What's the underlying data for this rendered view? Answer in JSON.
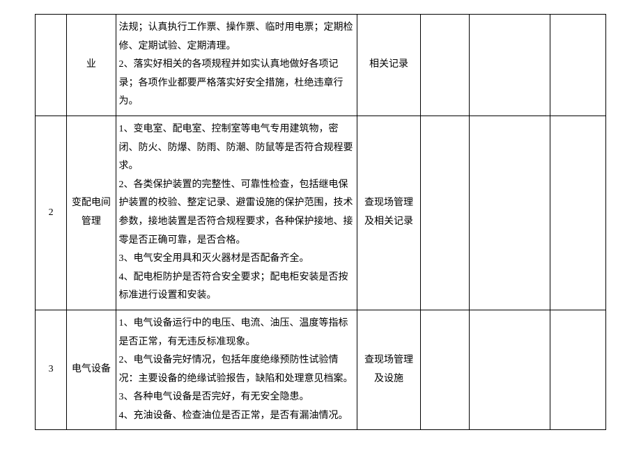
{
  "rows": [
    {
      "index": "",
      "item": "业",
      "desc": "法规；认真执行工作票、操作票、临时用电票；定期检修、定期试验、定期清理。\n2、落实好相关的各项规程并如实认真地做好各项记录；各项作业都要严格落实好安全措施，杜绝违章行为。",
      "check": "相关记录",
      "b1": "",
      "b2": "",
      "b3": ""
    },
    {
      "index": "2",
      "item": "变配电间管理",
      "desc": "1、变电室、配电室、控制室等电气专用建筑物，密闭、防火、防爆、防雨、防潮、防鼠等是否符合规程要求。\n2、各类保护装置的完整性、可靠性检查，包括继电保护装置的校验、整定记录、避雷设施的保护范围，技术参数，接地装置是否符合规程要求，各种保护接地、接零是否正确可靠，是否合格。\n3、电气安全用具和灭火器材是否配备齐全。\n4、配电柜防护是否符合安全要求；配电柜安装是否按标准进行设置和安装。",
      "check": "查现场管理及相关记录",
      "b1": "",
      "b2": "",
      "b3": ""
    },
    {
      "index": "3",
      "item": "电气设备",
      "desc": "1、电气设备运行中的电压、电流、油压、温度等指标是否正常，有无违反标准现象。\n2、电气设备完好情况，包括年度绝缘预防性试验情况：主要设备的绝缘试验报告，缺陷和处理意见档案。\n3、各种电气设备是否完好，有无安全隐患。\n4、充油设备、检查油位是否正常，是否有漏油情况。",
      "check": "查现场管理及设施",
      "b1": "",
      "b2": "",
      "b3": ""
    }
  ]
}
